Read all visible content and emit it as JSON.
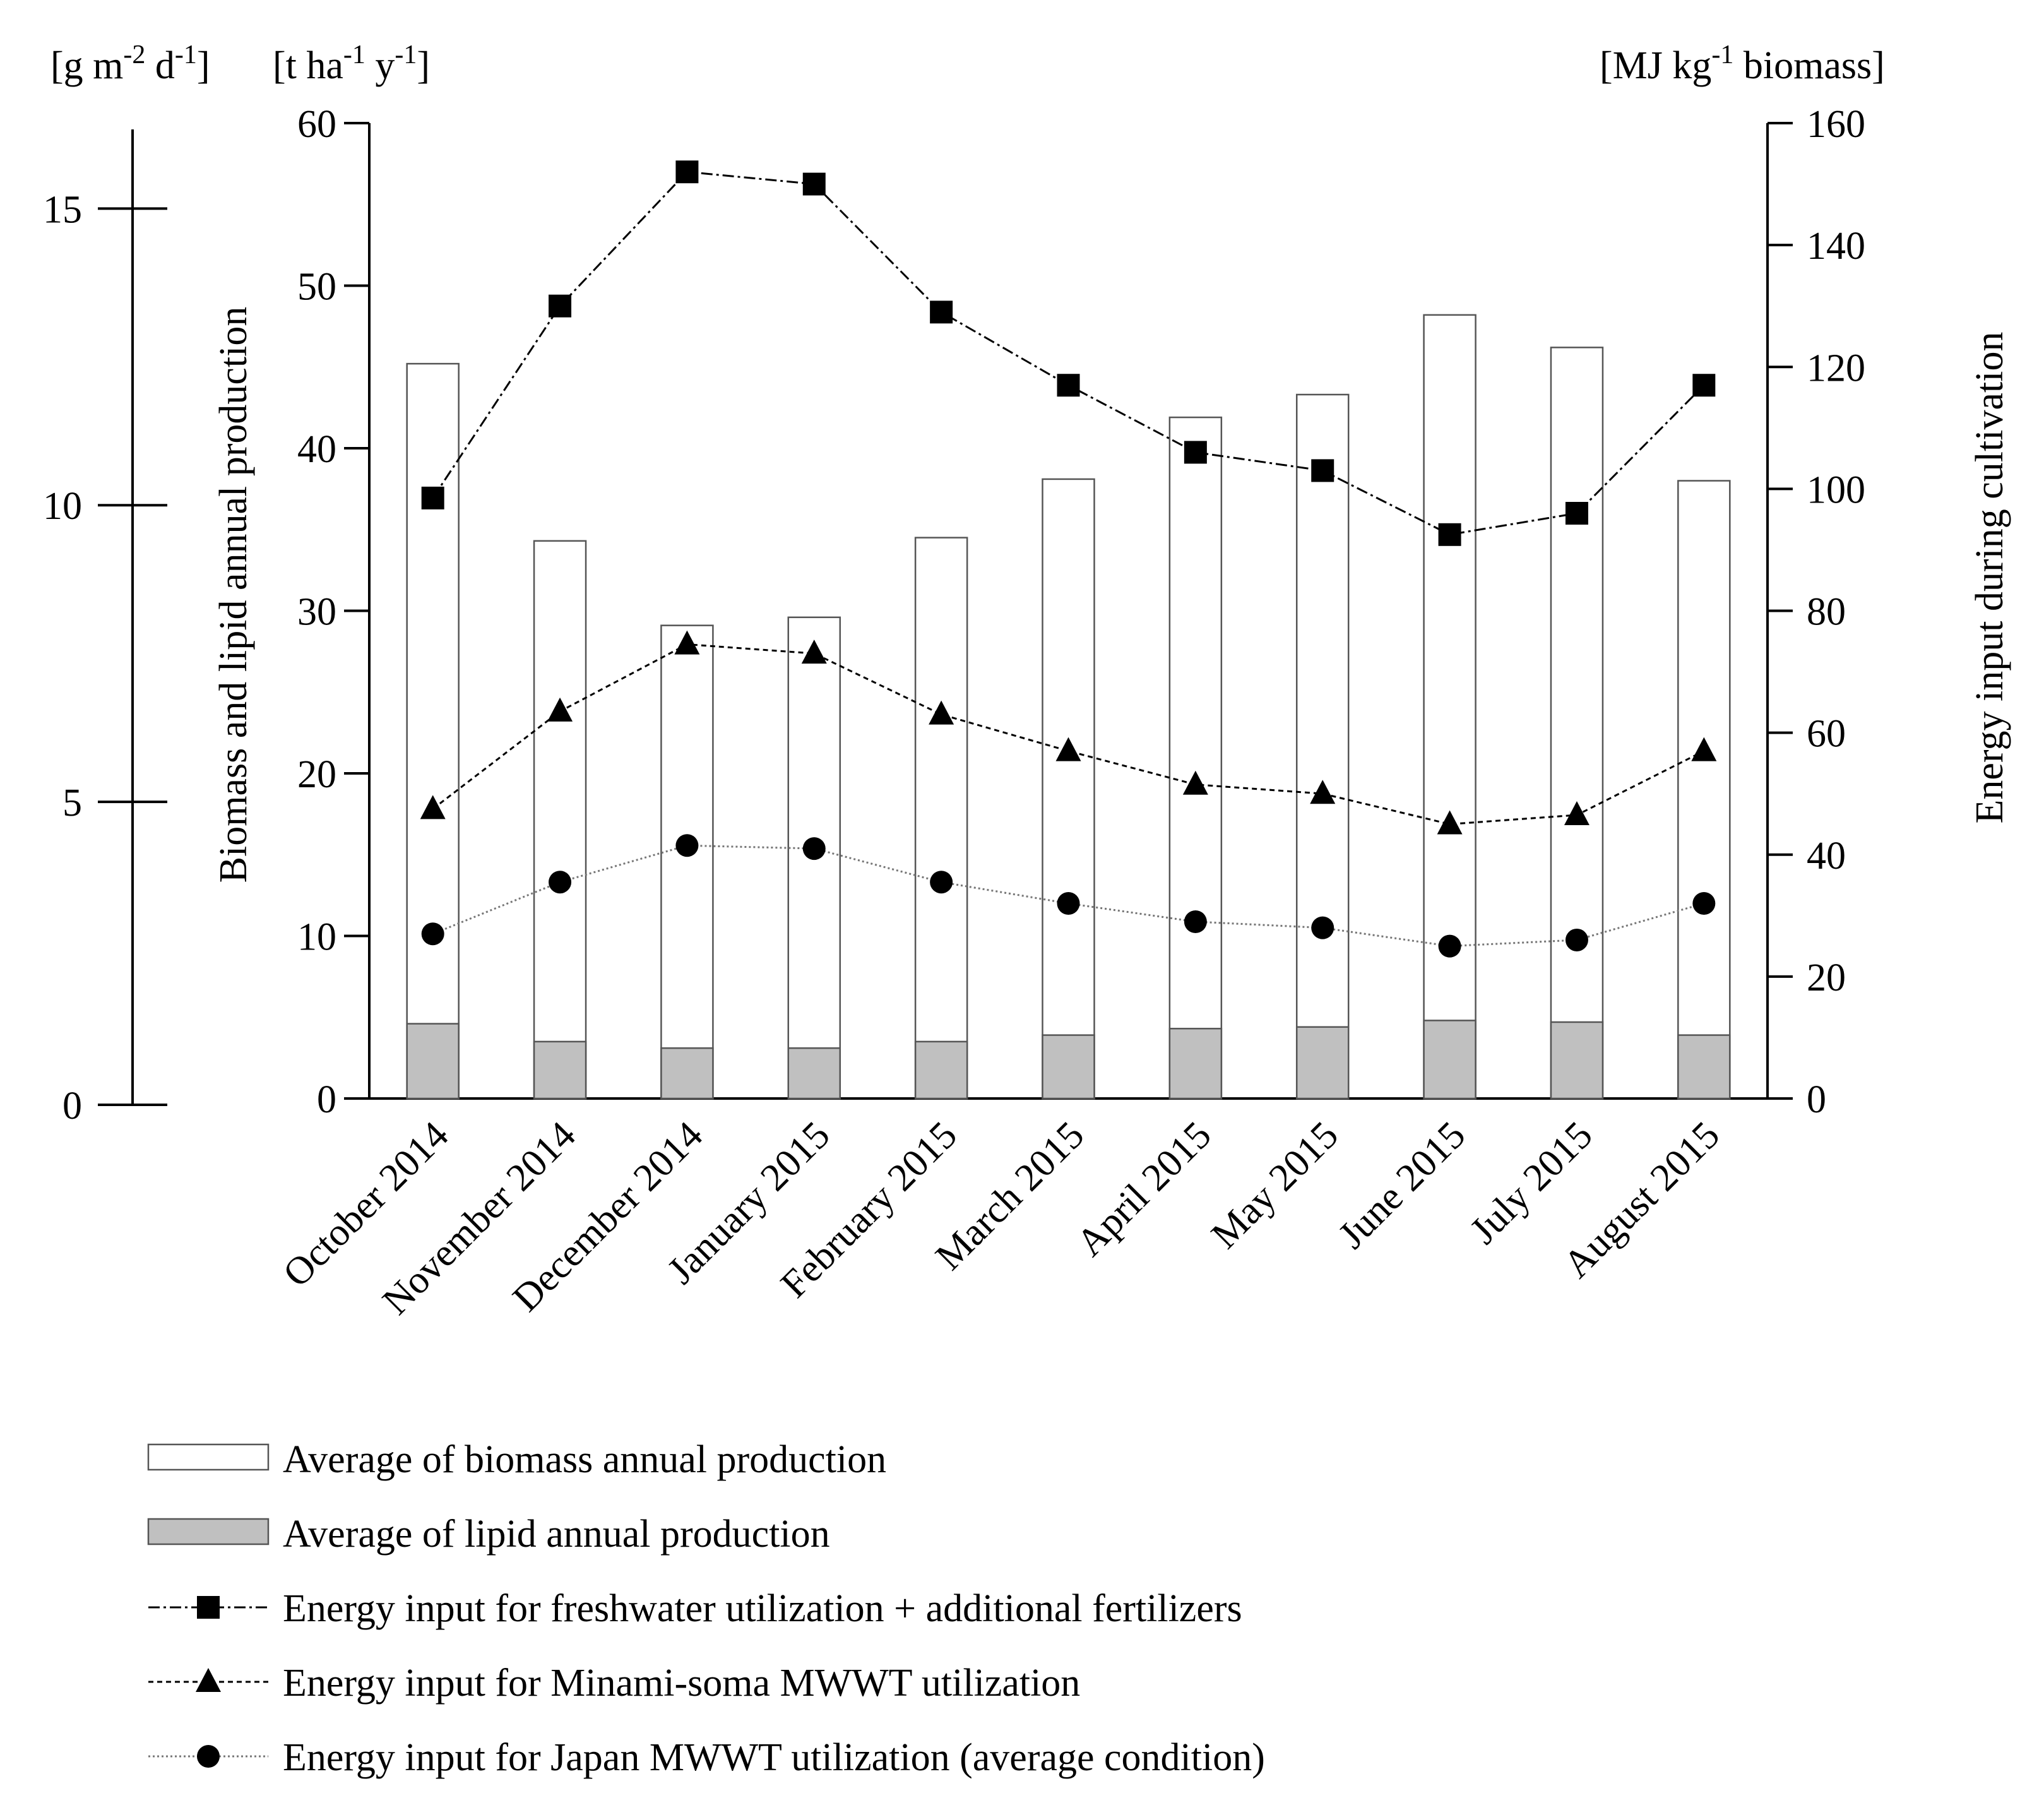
{
  "chart_data": {
    "type": "bar",
    "categories": [
      "October 2014",
      "November 2014",
      "December 2014",
      "January 2015",
      "February 2015",
      "March 2015",
      "April 2015",
      "May 2015",
      "June 2015",
      "July 2015",
      "August 2015"
    ],
    "series": [
      {
        "name": "Average of biomass annual production",
        "kind": "bar",
        "axis": "left",
        "fill": "#ffffff",
        "values": [
          45.2,
          34.3,
          29.1,
          29.6,
          34.5,
          38.1,
          41.9,
          43.3,
          48.2,
          46.2,
          38.0
        ]
      },
      {
        "name": "Average of lipid annual production",
        "kind": "bar",
        "axis": "left",
        "fill": "#c0c0c0",
        "values": [
          4.6,
          3.5,
          3.1,
          3.1,
          3.5,
          3.9,
          4.3,
          4.4,
          4.8,
          4.7,
          3.9
        ]
      },
      {
        "name": "Energy input for freshwater utilization + additional fertilizers",
        "kind": "line",
        "axis": "right",
        "marker": "square",
        "dash": "18,6,4,6",
        "color": "#000000",
        "values": [
          98.5,
          130,
          152,
          150,
          129,
          117,
          106,
          103,
          92.5,
          96,
          117
        ]
      },
      {
        "name": "Energy input for Minami-soma MWWT utilization",
        "kind": "line",
        "axis": "right",
        "marker": "triangle",
        "dash": "8,6",
        "color": "#000000",
        "values": [
          47.5,
          63.5,
          74.5,
          73,
          63,
          57,
          51.5,
          50,
          45,
          46.5,
          57
        ]
      },
      {
        "name": "Energy input for Japan MWWT utilization (average condition)",
        "kind": "line",
        "axis": "right",
        "marker": "circle",
        "dash": "3,4",
        "color": "#777777",
        "values": [
          27,
          35.5,
          41.5,
          41,
          35.5,
          32,
          29,
          28,
          25,
          26,
          32
        ]
      }
    ],
    "y_left": {
      "label": "Biomass and lipid annual production",
      "unit": "[t ha-1 y-1]",
      "ylim": [
        0,
        60
      ],
      "ticks": [
        0,
        10,
        20,
        30,
        40,
        50,
        60
      ]
    },
    "y_left_secondary": {
      "unit": "[g m-2 d-1]",
      "ylim": [
        0,
        16.44
      ],
      "ticks": [
        0,
        5,
        10,
        15
      ]
    },
    "y_right": {
      "label": "Energy input during cultivation",
      "unit": "[MJ kg-1 biomass]",
      "ylim": [
        0,
        160
      ],
      "ticks": [
        0,
        20,
        40,
        60,
        80,
        100,
        120,
        140,
        160
      ]
    },
    "legend_position": "bottom"
  },
  "units": {
    "gmd": {
      "a": "[g m",
      "b": "-2",
      "c": " d",
      "d": "-1",
      "e": "]"
    },
    "thy": {
      "a": "[t ha",
      "b": "-1",
      "c": " y",
      "d": "-1",
      "e": "]"
    },
    "mjkg": {
      "a": "[MJ kg",
      "b": "-1",
      "c": " biomass]"
    }
  }
}
